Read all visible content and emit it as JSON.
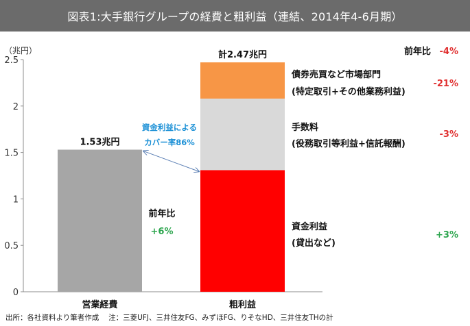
{
  "title": "図表1:大手銀行グループの経費と粗利益（連結、2014年4-6月期）",
  "source_note": "出所：各社資料より筆者作成　 注：三菱UFJ、三井住友FG、みずほFG、りそなHD、三井住友THの計",
  "colors": {
    "title_bg": "#6b6b6b",
    "expense": "#a6a6a6",
    "interest": "#ff0000",
    "fee": "#d9d9d9",
    "market": "#f79646",
    "positive": "#2ea64f",
    "negative": "#e03030"
  },
  "chart_data": {
    "type": "bar",
    "stacked": true,
    "ylabel": "（兆円）",
    "ylim": [
      0,
      2.5
    ],
    "yticks": [
      0,
      0.5,
      1,
      1.5,
      2,
      2.5
    ],
    "ytick_labels": [
      "0",
      "0.5",
      "1",
      "1.5",
      "2",
      "2.5"
    ],
    "grid": false,
    "categories": [
      "営業経費",
      "粗利益"
    ],
    "series": [
      {
        "name": "資金利益",
        "detail": "(貸出など)",
        "values": [
          0,
          1.31
        ],
        "yoy": "+3%",
        "color": "#ff0000",
        "yoy_sign": "positive"
      },
      {
        "name": "手数料",
        "detail": "(役務取引等利益+信託報酬)",
        "values": [
          0,
          0.77
        ],
        "yoy": "-3%",
        "color": "#d9d9d9",
        "yoy_sign": "negative"
      },
      {
        "name": "債券売買など市場部門",
        "detail": "(特定取引+その他業務利益)",
        "values": [
          0,
          0.39
        ],
        "yoy": "-21%",
        "color": "#f79646",
        "yoy_sign": "negative"
      }
    ],
    "expense": {
      "value": 1.53,
      "label": "1.53兆円",
      "color": "#a6a6a6"
    },
    "total": {
      "value": 2.47,
      "label": "計2.47兆円"
    },
    "yoy_header": "前年比",
    "total_yoy": "-4%",
    "expense_yoy_header": "前年比",
    "expense_yoy": "+6%",
    "annotation": {
      "line1": "資金利益による",
      "line2": "カバー率86%"
    }
  }
}
